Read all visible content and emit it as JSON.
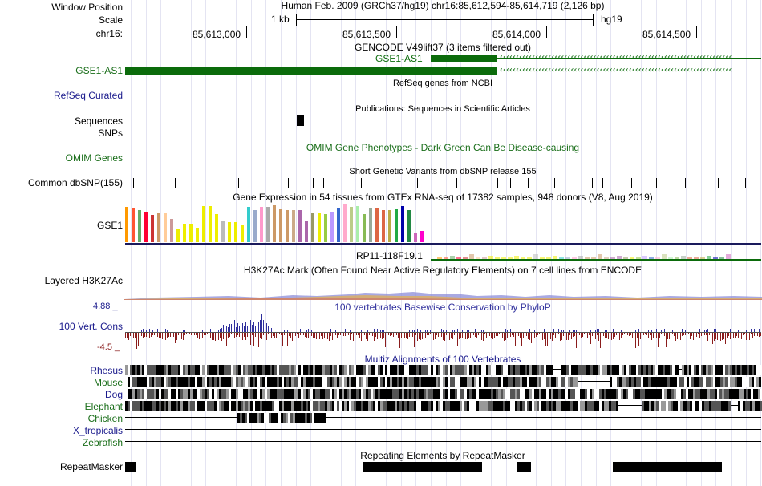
{
  "header": {
    "window_position_label": "Window Position",
    "scale_label": "Scale",
    "chrom_label": "chr16:",
    "assembly_position": "Human Feb. 2009 (GRCh37/hg19)   chr16:85,612,594-85,614,719 (2,126 bp)",
    "scale_text": "1 kb",
    "scale_assembly": "hg19",
    "coordinates": [
      "85,613,000",
      "85,613,500",
      "85,614,000",
      "85,614,500"
    ]
  },
  "tracks": {
    "gencode": {
      "title": "GENCODE V49lift37 (3 items filtered out)",
      "gene_label_inline": "GSE1-AS1",
      "left_label": "GSE1-AS1"
    },
    "refseq": {
      "title": "RefSeq genes from NCBI",
      "left_label": "RefSeq Curated"
    },
    "publications": {
      "title": "Publications: Sequences in Scientific Articles",
      "left_label_1": "Sequences",
      "left_label_2": "SNPs"
    },
    "omim": {
      "title": "OMIM Gene Phenotypes - Dark Green Can Be Disease-causing",
      "left_label": "OMIM Genes"
    },
    "dbsnp": {
      "title": "Short Genetic Variants from dbSNP release 155",
      "left_label": "Common dbSNP(155)"
    },
    "gtex": {
      "title": "Gene Expression in 54 tissues from GTEx RNA-seq of 17382 samples, 948 donors (V8, Aug 2019)",
      "left_label": "GSE1",
      "second_gene": "RP11-118F19.1"
    },
    "h3k27ac": {
      "title": "H3K27Ac Mark (Often Found Near Active Regulatory Elements) on 7 cell lines from ENCODE",
      "left_label": "Layered H3K27Ac"
    },
    "conservation": {
      "title": "100 vertebrates Basewise Conservation by PhyloP",
      "left_label": "100 Vert. Cons",
      "max": "4.88 _",
      "min": "-4.5 _"
    },
    "multiz": {
      "title": "Multiz Alignments of 100 Vertebrates",
      "species": [
        "Rhesus",
        "Mouse",
        "Dog",
        "Elephant",
        "Chicken",
        "X_tropicalis",
        "Zebrafish"
      ]
    },
    "repeatmasker": {
      "title": "Repeating Elements by RepeatMasker",
      "left_label": "RepeatMasker"
    }
  },
  "colors": {
    "gene_green": "#0b6b0b",
    "label_blue": "#1a1a8c",
    "label_green": "#1a6e1a",
    "separator": "#e6a0a0",
    "cons_positive": "#2f2f9c",
    "cons_negative": "#8a1c1c"
  }
}
